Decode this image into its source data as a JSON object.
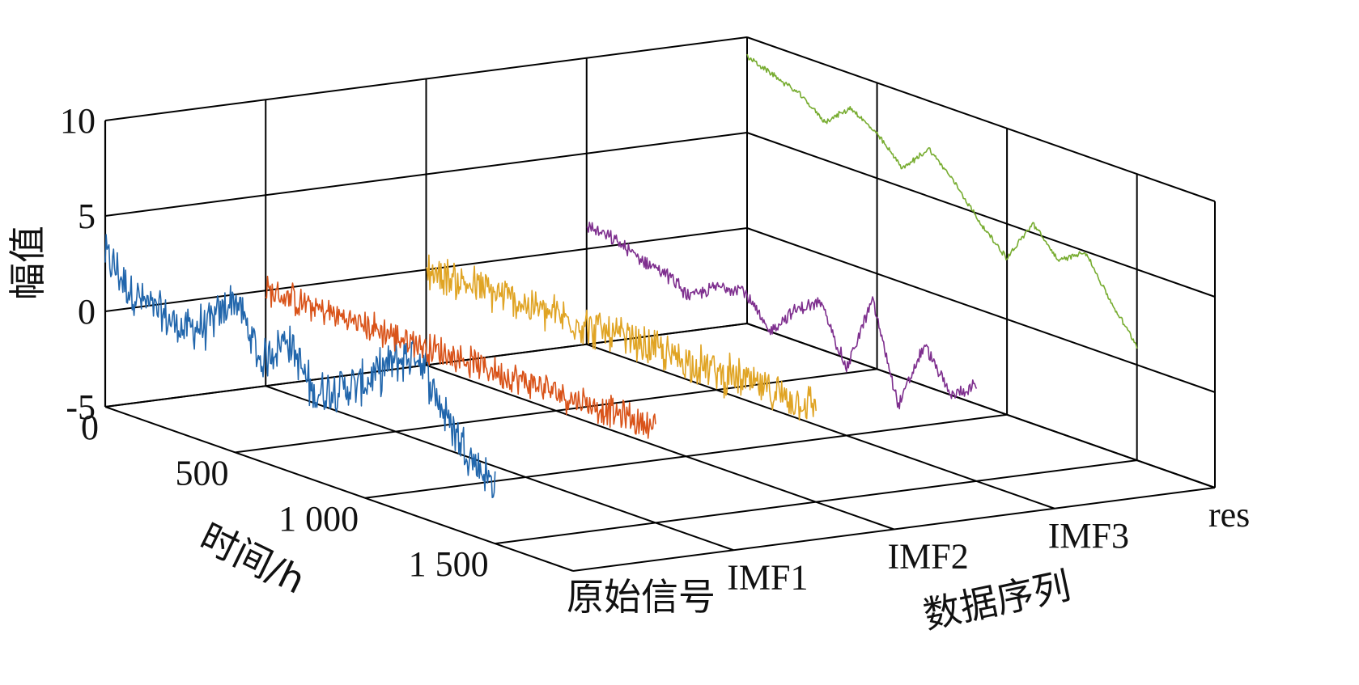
{
  "chart_data": {
    "type": "line",
    "view": "3d-waterfall",
    "zlabel": "幅值",
    "xlabel": "时间/h",
    "ylabel": "数据序列",
    "zlim": [
      -5,
      10
    ],
    "xlim": [
      0,
      1800
    ],
    "z_ticks": [
      10,
      5,
      0,
      -5
    ],
    "x_ticks": [
      0,
      500,
      1000,
      1500
    ],
    "x_tick_labels": [
      "0",
      "500",
      "1 000",
      "1 500"
    ],
    "categories": [
      "原始信号",
      "IMF1",
      "IMF2",
      "IMF3",
      "res"
    ],
    "grid": true,
    "series": [
      {
        "category": "原始信号",
        "color": "#2166ac",
        "x": [
          0,
          100,
          200,
          300,
          400,
          500,
          600,
          700,
          800,
          900,
          1000,
          1100,
          1200,
          1300,
          1400,
          1500
        ],
        "y": [
          3.0,
          1.5,
          0.9,
          0.5,
          1.2,
          3.1,
          0.2,
          2.0,
          -0.5,
          0.3,
          1.0,
          2.5,
          3.6,
          1.0,
          -0.8,
          -2.0
        ],
        "noise": 1.0
      },
      {
        "category": "IMF1",
        "color": "#d95319",
        "x": [
          0,
          100,
          200,
          300,
          400,
          500,
          600,
          700,
          800,
          900,
          1000,
          1100,
          1200,
          1300,
          1400,
          1500
        ],
        "y": [
          0,
          0,
          0,
          0,
          0,
          0,
          0,
          0,
          0,
          0,
          0,
          0,
          0,
          0,
          0,
          0
        ],
        "noise": 0.7
      },
      {
        "category": "IMF2",
        "color": "#e0a424",
        "x": [
          0,
          100,
          200,
          300,
          400,
          500,
          600,
          700,
          800,
          900,
          1000,
          1100,
          1200,
          1300,
          1400,
          1500
        ],
        "y": [
          0,
          0,
          0,
          0,
          0,
          0,
          0,
          0,
          0,
          0,
          0,
          0,
          0,
          0,
          0,
          0
        ],
        "noise": 0.9
      },
      {
        "category": "IMF3",
        "color": "#7e2f8e",
        "x": [
          0,
          100,
          200,
          300,
          400,
          500,
          600,
          700,
          800,
          900,
          1000,
          1100,
          1200,
          1300,
          1400,
          1500
        ],
        "y": [
          1.2,
          1.0,
          0.5,
          0.2,
          -0.6,
          0.4,
          0.8,
          -1.0,
          0.6,
          1.5,
          -1.5,
          2.6,
          -2.5,
          1.2,
          -1.0,
          0.0
        ],
        "noise": 0.3
      },
      {
        "category": "res",
        "color": "#77ac30",
        "x": [
          0,
          100,
          200,
          300,
          400,
          500,
          600,
          700,
          800,
          900,
          1000,
          1100,
          1200,
          1300,
          1400,
          1500
        ],
        "y": [
          9.0,
          8.5,
          8.0,
          7.0,
          8.2,
          7.3,
          6.0,
          7.5,
          6.2,
          4.5,
          3.2,
          5.5,
          4.0,
          5.0,
          2.8,
          1.0
        ],
        "noise": 0.12
      }
    ]
  }
}
